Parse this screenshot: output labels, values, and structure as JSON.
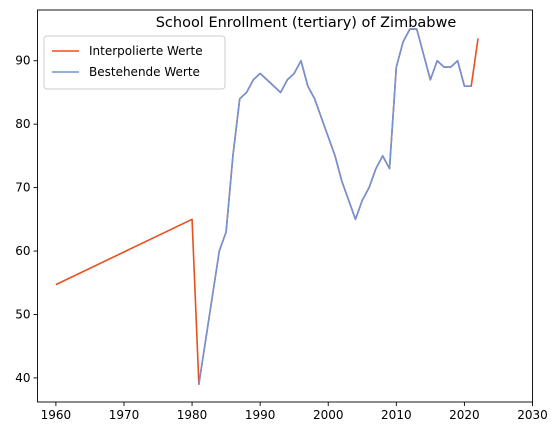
{
  "chart_data": {
    "type": "line",
    "title": "School Enrollment (tertiary) of Zimbabwe",
    "xlabel": "",
    "ylabel": "",
    "xlim": [
      1957.3,
      2030
    ],
    "ylim": [
      36.2,
      98.0
    ],
    "x_ticks": [
      "1960",
      "1970",
      "1980",
      "1990",
      "2000",
      "2010",
      "2020",
      "2030"
    ],
    "y_ticks": [
      "40",
      "50",
      "60",
      "70",
      "80",
      "90"
    ],
    "grid": false,
    "legend_position": "top-left",
    "series": [
      {
        "name": "Interpolierte Werte",
        "color": "#e8501e",
        "x": [
          1960,
          1980,
          1981,
          1982,
          1983,
          1984,
          1985,
          1986,
          1987,
          1988,
          1989,
          1990,
          1991,
          1992,
          1993,
          1994,
          1995,
          1996,
          1997,
          1998,
          1999,
          2000,
          2001,
          2002,
          2003,
          2004,
          2005,
          2006,
          2007,
          2008,
          2009,
          2010,
          2011,
          2012,
          2013,
          2014,
          2015,
          2016,
          2017,
          2018,
          2019,
          2020,
          2021,
          2022
        ],
        "y": [
          54.7,
          65.0,
          39.0,
          46.0,
          53.0,
          60.0,
          63.0,
          75.0,
          84.0,
          85.0,
          87.0,
          88.0,
          87.0,
          86.0,
          85.0,
          87.0,
          88.0,
          90.0,
          86.0,
          84.0,
          81.0,
          78.0,
          75.0,
          71.0,
          68.0,
          65.0,
          68.0,
          70.0,
          73.0,
          75.0,
          73.0,
          89.0,
          93.0,
          95.0,
          95.0,
          91.0,
          87.0,
          90.0,
          89.0,
          89.0,
          90.0,
          86.0,
          86.0,
          93.5
        ]
      },
      {
        "name": "Bestehende Werte",
        "color": "#7094d6",
        "x": [
          1981,
          1982,
          1983,
          1984,
          1985,
          1986,
          1987,
          1988,
          1989,
          1990,
          1991,
          1992,
          1993,
          1994,
          1995,
          1996,
          1997,
          1998,
          1999,
          2000,
          2001,
          2002,
          2003,
          2004,
          2005,
          2006,
          2007,
          2008,
          2009,
          2010,
          2011,
          2012,
          2013,
          2014,
          2015,
          2016,
          2017,
          2018,
          2019,
          2020,
          2021
        ],
        "y": [
          39.0,
          46.0,
          53.0,
          60.0,
          63.0,
          75.0,
          84.0,
          85.0,
          87.0,
          88.0,
          87.0,
          86.0,
          85.0,
          87.0,
          88.0,
          90.0,
          86.0,
          84.0,
          81.0,
          78.0,
          75.0,
          71.0,
          68.0,
          65.0,
          68.0,
          70.0,
          73.0,
          75.0,
          73.0,
          89.0,
          93.0,
          95.0,
          95.0,
          91.0,
          87.0,
          90.0,
          89.0,
          89.0,
          90.0,
          86.0,
          86.0
        ]
      }
    ]
  }
}
